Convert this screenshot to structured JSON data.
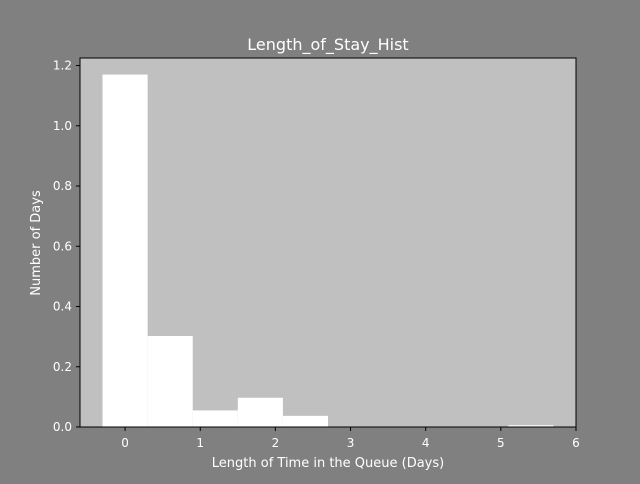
{
  "colors": {
    "figure_background": "#808080",
    "plot_background": "#c0c0c0",
    "bar_fill": "#ffffff",
    "text": "#ffffff",
    "axes_frame": "#000000"
  },
  "chart_data": {
    "type": "bar",
    "title": "Length_of_Stay_Hist",
    "xlabel": "Length of Time in the Queue (Days)",
    "ylabel": "Number of Days",
    "xlim": [
      -0.6,
      6.0
    ],
    "ylim": [
      0.0,
      1.225
    ],
    "grid": false,
    "legend": "none",
    "x_ticks": [
      0,
      1,
      2,
      3,
      4,
      5,
      6
    ],
    "x_tick_labels": [
      "0",
      "1",
      "2",
      "3",
      "4",
      "5",
      "6"
    ],
    "y_ticks": [
      0.0,
      0.2,
      0.4,
      0.6,
      0.8,
      1.0,
      1.2
    ],
    "y_tick_labels": [
      "0.0",
      "0.2",
      "0.4",
      "0.6",
      "0.8",
      "1.0",
      "1.2"
    ],
    "bins": [
      {
        "start": -0.3,
        "end": 0.3,
        "value": 1.17
      },
      {
        "start": 0.3,
        "end": 0.9,
        "value": 0.302
      },
      {
        "start": 0.9,
        "end": 1.5,
        "value": 0.055
      },
      {
        "start": 1.5,
        "end": 2.1,
        "value": 0.097
      },
      {
        "start": 2.1,
        "end": 2.7,
        "value": 0.037
      },
      {
        "start": 2.7,
        "end": 3.3,
        "value": 0.0
      },
      {
        "start": 3.3,
        "end": 3.9,
        "value": 0.0
      },
      {
        "start": 3.9,
        "end": 4.5,
        "value": 0.0
      },
      {
        "start": 4.5,
        "end": 5.1,
        "value": 0.0
      },
      {
        "start": 5.1,
        "end": 5.7,
        "value": 0.006
      }
    ]
  }
}
